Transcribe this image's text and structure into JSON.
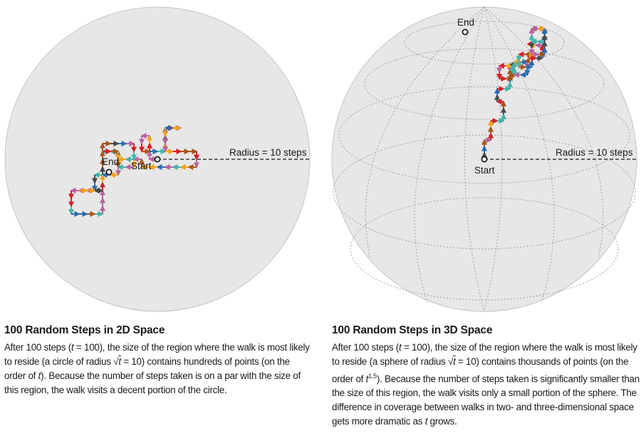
{
  "colors": {
    "circle_fill": "#e7e7e7",
    "circle_stroke": "#c4c4c4",
    "grid": "#9a9a9a",
    "walk": [
      "#d62027",
      "#f2a31c",
      "#44b3a9",
      "#b8649f",
      "#2b6cb0",
      "#4a4a4a",
      "#a8551c"
    ]
  },
  "panel_2d": {
    "end_label": "End",
    "start_label": "Start",
    "radius_label": "Radius = 10 steps",
    "caption": {
      "title": "100 Random Steps in 2D Space",
      "p1": "After 100 steps (",
      "t1": "t",
      "p2": " = 100), the size of the region where the walk is most likely to reside (a circle of radius √",
      "t2": "t",
      "p3": " = 10) contains hundreds of points (on the order of ",
      "t3": "t",
      "p4": "). Because the number of steps taken is on a par with the size of this region, the walk visits a decent portion of the circle."
    }
  },
  "panel_3d": {
    "end_label": "End",
    "start_label": "Start",
    "radius_label": "Radius = 10 steps",
    "caption": {
      "title": "100 Random Steps in 3D Space",
      "p1": "After 100 steps (",
      "t1": "t",
      "p2": " = 100), the size of the region where the walk is most likely to reside (a sphere of radius √",
      "t2": "t",
      "p3": " = 10) contains thousands of points (on the order of ",
      "t3": "t",
      "exp": "1.5",
      "p4": "). Because the number of steps taken is significantly smaller than the size of this region, the walk visits only a small portion of the sphere. The difference in coverage between walks in two- and three-dimensional space gets more dramatic as ",
      "t4": "t",
      "p5": " grows."
    }
  }
}
